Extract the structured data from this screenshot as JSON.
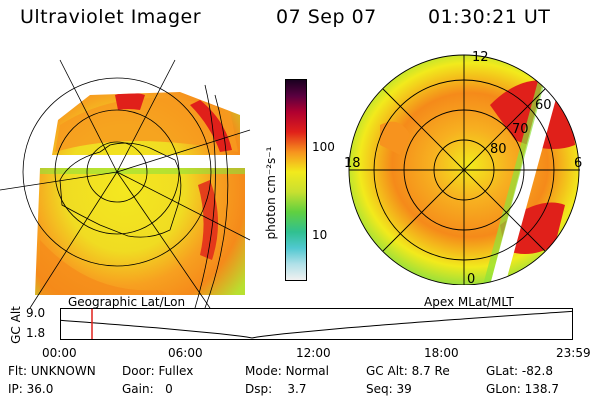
{
  "header": {
    "title": "Ultraviolet Imager",
    "date": "07 Sep 07",
    "time": "01:30:21 UT"
  },
  "colorbar": {
    "unit_label": "photon cm⁻²s⁻¹",
    "ticks": [
      "100",
      "10"
    ]
  },
  "left_map": {
    "caption": "Geographic Lat/Lon"
  },
  "right_map": {
    "caption": "Apex MLat/MLT",
    "mlt_labels": {
      "top": "12",
      "left": "18",
      "right": "6",
      "bottom": "0"
    },
    "lat_labels": [
      "60",
      "70",
      "80"
    ]
  },
  "timeline": {
    "ylabel": "GC Alt",
    "ymax": "9.0",
    "ymin": "1.8",
    "ticks": [
      "00:00",
      "06:00",
      "12:00",
      "18:00",
      "23:59"
    ],
    "current_time_hours": 1.5
  },
  "info": {
    "flt": {
      "label": "Flt:",
      "value": "UNKNOWN"
    },
    "ip": {
      "label": "IP:",
      "value": "36.0"
    },
    "door": {
      "label": "Door:",
      "value": "Fullex"
    },
    "gain": {
      "label": "Gain:",
      "value": "0"
    },
    "mode": {
      "label": "Mode:",
      "value": "Normal"
    },
    "dsp": {
      "label": "Dsp:",
      "value": "3.7"
    },
    "gcalt": {
      "label": "GC Alt:",
      "value": "8.7 Re"
    },
    "seq": {
      "label": "Seq:",
      "value": "39"
    },
    "glat": {
      "label": "GLat:",
      "value": "-82.8"
    },
    "glon": {
      "label": "GLon:",
      "value": "138.7"
    }
  },
  "colors": {
    "red": "#e0201a",
    "orange": "#f7931e",
    "yellow": "#f2ea1c",
    "green": "#8fe23a",
    "darkred": "#a0001a"
  }
}
